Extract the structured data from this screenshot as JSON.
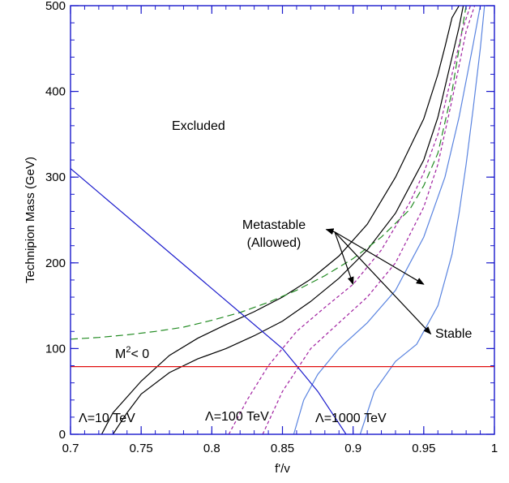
{
  "chart_data": {
    "type": "line",
    "title": "",
    "xlabel": "f'/v",
    "ylabel": "Technipion Mass (GeV)",
    "xlim": [
      0.7,
      1.0
    ],
    "ylim": [
      0,
      500
    ],
    "xticks": [
      "0.7",
      "0.75",
      "0.8",
      "0.85",
      "0.9",
      "0.95",
      "1"
    ],
    "yticks": [
      "0",
      "100",
      "200",
      "300",
      "400",
      "500"
    ],
    "grid": false,
    "colors": {
      "axis": "#1a1acc",
      "black": "#000000",
      "blue": "#1a1acc",
      "lightblue": "#5a84e0",
      "purple": "#a020a0",
      "green": "#228b22",
      "red": "#e01010"
    },
    "series": [
      {
        "style": "solid",
        "color": "black",
        "x": [
          0.722,
          0.73,
          0.75,
          0.77,
          0.79,
          0.81,
          0.83,
          0.85,
          0.87,
          0.89,
          0.91,
          0.93,
          0.95,
          0.96,
          0.965,
          0.97,
          0.975
        ],
        "y": [
          0,
          25,
          62,
          92,
          112,
          128,
          143,
          160,
          181,
          208,
          245,
          300,
          368,
          420,
          452,
          486,
          500
        ]
      },
      {
        "style": "solid",
        "color": "black",
        "x": [
          0.73,
          0.74,
          0.75,
          0.77,
          0.79,
          0.81,
          0.83,
          0.85,
          0.87,
          0.89,
          0.91,
          0.93,
          0.95,
          0.96,
          0.97,
          0.975,
          0.978
        ],
        "y": [
          0,
          25,
          47,
          72,
          88,
          100,
          115,
          132,
          155,
          182,
          215,
          258,
          320,
          370,
          440,
          475,
          500
        ]
      },
      {
        "style": "dashed",
        "color": "green",
        "x": [
          0.7,
          0.72,
          0.74,
          0.76,
          0.78,
          0.8,
          0.82,
          0.84,
          0.86,
          0.88,
          0.9,
          0.92,
          0.94,
          0.95,
          0.96,
          0.97,
          0.98
        ],
        "y": [
          111,
          113,
          116,
          120,
          125,
          133,
          142,
          154,
          168,
          185,
          205,
          230,
          262,
          290,
          328,
          400,
          500
        ]
      },
      {
        "style": "dashed",
        "color": "purple",
        "x": [
          0.812,
          0.825,
          0.84,
          0.86,
          0.88,
          0.9,
          0.92,
          0.94,
          0.95,
          0.96,
          0.97,
          0.978,
          0.983
        ],
        "y": [
          0,
          40,
          80,
          120,
          148,
          175,
          215,
          270,
          305,
          350,
          420,
          475,
          500
        ]
      },
      {
        "style": "dashed",
        "color": "purple",
        "x": [
          0.836,
          0.85,
          0.87,
          0.89,
          0.91,
          0.93,
          0.95,
          0.96,
          0.97,
          0.98,
          0.986
        ],
        "y": [
          0,
          50,
          100,
          130,
          160,
          200,
          265,
          315,
          390,
          470,
          500
        ]
      },
      {
        "style": "solid",
        "color": "lightblue",
        "x": [
          0.858,
          0.865,
          0.875,
          0.89,
          0.91,
          0.93,
          0.95,
          0.965,
          0.975,
          0.985,
          0.99
        ],
        "y": [
          0,
          40,
          70,
          100,
          130,
          168,
          230,
          300,
          370,
          455,
          500
        ]
      },
      {
        "style": "solid",
        "color": "lightblue",
        "x": [
          0.905,
          0.915,
          0.93,
          0.945,
          0.96,
          0.97,
          0.975,
          0.98,
          0.985,
          0.99,
          0.993
        ],
        "y": [
          0,
          50,
          85,
          105,
          150,
          210,
          258,
          315,
          380,
          450,
          500
        ]
      },
      {
        "style": "solid",
        "color": "blue",
        "x": [
          0.7,
          0.85,
          0.875,
          0.895
        ],
        "y": [
          310,
          100,
          50,
          0
        ]
      },
      {
        "style": "solid",
        "color": "red",
        "x": [
          0.7,
          1.0
        ],
        "y": [
          79,
          79
        ]
      }
    ],
    "annotations": {
      "excluded": "Excluded",
      "metastable": "Metastable",
      "allowed": "(Allowed)",
      "stable": "Stable",
      "m2_base": "M",
      "m2_sup": "2",
      "m2_rest": "< 0",
      "lambda10": "Λ=10 TeV",
      "lambda100": "Λ=100 TeV",
      "lambda1000": "Λ=1000 TeV"
    },
    "arrows": [
      {
        "x1": 0.887,
        "y1": 236,
        "x2": 0.881,
        "y2": 239
      },
      {
        "x1": 0.887,
        "y1": 236,
        "x2": 0.95,
        "y2": 175
      },
      {
        "x1": 0.887,
        "y1": 236,
        "x2": 0.9,
        "y2": 175
      },
      {
        "x1": 0.887,
        "y1": 236,
        "x2": 0.955,
        "y2": 117
      }
    ]
  }
}
